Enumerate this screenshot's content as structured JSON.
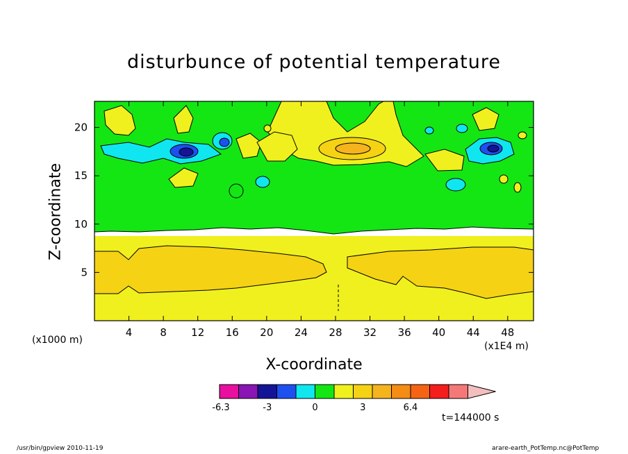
{
  "chart_data": {
    "type": "heatmap",
    "title": "disturbunce of potential temperature",
    "xlabel": "X-coordinate",
    "ylabel": "Z-coordinate",
    "x_unit": "(x1E4 m)",
    "y_unit": "(x1000 m)",
    "x_ticks": [
      "4",
      "8",
      "12",
      "16",
      "20",
      "24",
      "28",
      "32",
      "36",
      "40",
      "44",
      "48"
    ],
    "y_ticks": [
      "5",
      "10",
      "15",
      "20"
    ],
    "xlim": [
      0,
      51
    ],
    "ylim": [
      0,
      22.7
    ],
    "colorbar": {
      "levels": [
        -6.3,
        -3,
        0,
        3,
        6.4
      ],
      "labels": [
        "-6.3",
        "-3",
        "0",
        "3",
        "6.4"
      ],
      "colors": [
        "#e8109e",
        "#8a14b4",
        "#141496",
        "#1e50f0",
        "#10e6f0",
        "#14e614",
        "#f0f01e",
        "#f5d214",
        "#f5b41e",
        "#f58c14",
        "#f56414",
        "#f51e1e",
        "#f57878",
        "#f5bebe"
      ]
    },
    "annotation": "t=144000 s",
    "dominant_colors": {
      "lower_band": "#f0f01e",
      "lower_core": "#f5d214",
      "upper_field": "#14e614",
      "cold_cells": "#10e6f0",
      "warm_core": "#f5b41e"
    }
  },
  "footer": {
    "left": "/usr/bin/gpview   2010-11-19",
    "right": "arare-earth_PotTemp.nc@PotTemp"
  }
}
